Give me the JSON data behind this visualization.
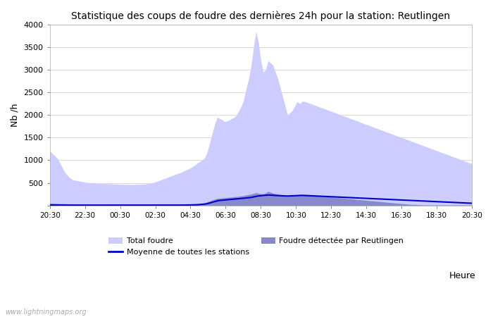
{
  "title": "Statistique des coups de foudre des dernières 24h pour la station: Reutlingen",
  "xlabel": "Heure",
  "ylabel": "Nb /h",
  "xlim_labels": [
    "20:30",
    "22:30",
    "00:30",
    "02:30",
    "04:30",
    "06:30",
    "08:30",
    "10:30",
    "12:30",
    "14:30",
    "16:30",
    "18:30",
    "20:30"
  ],
  "ylim": [
    0,
    4000
  ],
  "yticks": [
    0,
    500,
    1000,
    1500,
    2000,
    2500,
    3000,
    3500,
    4000
  ],
  "color_total": "#ccccff",
  "color_reutlingen": "#8888cc",
  "color_moyenne": "#0000cc",
  "watermark": "www.lightningmaps.org",
  "total_foudre": [
    1200,
    1150,
    1100,
    1050,
    950,
    850,
    750,
    680,
    620,
    580,
    560,
    550,
    540,
    530,
    520,
    510,
    505,
    500,
    495,
    490,
    487,
    485,
    483,
    481,
    480,
    478,
    475,
    472,
    470,
    468,
    465,
    463,
    462,
    461,
    460,
    462,
    464,
    466,
    468,
    470,
    480,
    490,
    500,
    510,
    530,
    550,
    570,
    590,
    610,
    630,
    650,
    670,
    690,
    710,
    730,
    750,
    780,
    800,
    830,
    860,
    900,
    940,
    980,
    1010,
    1060,
    1200,
    1400,
    1600,
    1800,
    1950,
    1920,
    1900,
    1850,
    1870,
    1890,
    1920,
    1950,
    2000,
    2100,
    2200,
    2350,
    2600,
    2800,
    3100,
    3500,
    3850,
    3600,
    3200,
    2950,
    3000,
    3200,
    3150,
    3100,
    2950,
    2800,
    2600,
    2400,
    2200,
    2000,
    2050,
    2100,
    2200,
    2300,
    2250,
    2300,
    2300,
    2280,
    2260,
    2240,
    2220,
    2200,
    2180,
    2160,
    2140,
    2120,
    2100,
    2080,
    2060,
    2040,
    2020,
    2000,
    1980,
    1960,
    1940,
    1920,
    1900,
    1880,
    1860,
    1840,
    1820,
    1800,
    1780,
    1760,
    1740,
    1720,
    1700,
    1680,
    1660,
    1640,
    1620,
    1600,
    1580,
    1560,
    1540,
    1520,
    1500,
    1480,
    1460,
    1440,
    1420,
    1400,
    1380,
    1360,
    1340,
    1320,
    1300,
    1280,
    1260,
    1240,
    1220,
    1200,
    1180,
    1160,
    1140,
    1120,
    1100,
    1080,
    1060,
    1040,
    1020,
    1000,
    980,
    960,
    940,
    920
  ],
  "reutlingen": [
    50,
    48,
    46,
    44,
    42,
    40,
    38,
    36,
    34,
    32,
    30,
    28,
    26,
    24,
    22,
    20,
    18,
    16,
    14,
    12,
    11,
    10,
    10,
    10,
    10,
    10,
    10,
    10,
    10,
    10,
    10,
    10,
    10,
    10,
    10,
    10,
    10,
    10,
    10,
    10,
    10,
    10,
    10,
    10,
    10,
    10,
    10,
    10,
    10,
    10,
    10,
    10,
    10,
    10,
    10,
    12,
    15,
    18,
    22,
    26,
    30,
    35,
    40,
    50,
    60,
    80,
    100,
    120,
    140,
    155,
    160,
    165,
    170,
    175,
    180,
    185,
    190,
    195,
    200,
    210,
    220,
    230,
    240,
    250,
    265,
    280,
    270,
    260,
    255,
    280,
    310,
    290,
    270,
    260,
    250,
    240,
    230,
    220,
    210,
    215,
    220,
    225,
    230,
    235,
    240,
    240,
    235,
    230,
    225,
    220,
    215,
    210,
    205,
    200,
    195,
    190,
    185,
    180,
    175,
    170,
    165,
    160,
    155,
    150,
    145,
    140,
    135,
    130,
    125,
    120,
    115,
    110,
    105,
    100,
    95,
    90,
    85,
    80,
    75,
    70,
    65,
    60,
    55,
    50,
    45,
    40,
    35,
    30,
    25,
    22,
    20,
    18,
    16,
    14,
    12,
    10,
    10,
    10,
    10,
    10,
    10,
    10,
    10,
    10,
    10,
    10,
    10,
    10,
    10,
    10,
    10,
    10,
    10,
    10,
    10
  ],
  "moyenne": [
    8,
    8,
    7,
    7,
    7,
    6,
    6,
    6,
    6,
    6,
    5,
    5,
    5,
    5,
    5,
    5,
    5,
    5,
    5,
    5,
    5,
    5,
    5,
    5,
    5,
    5,
    5,
    5,
    5,
    5,
    5,
    5,
    5,
    5,
    5,
    5,
    5,
    5,
    5,
    5,
    5,
    5,
    5,
    5,
    5,
    5,
    5,
    5,
    5,
    5,
    5,
    5,
    6,
    6,
    6,
    7,
    8,
    9,
    10,
    12,
    14,
    16,
    20,
    25,
    30,
    40,
    55,
    70,
    85,
    100,
    110,
    115,
    120,
    125,
    130,
    135,
    140,
    145,
    150,
    155,
    160,
    165,
    170,
    178,
    188,
    200,
    210,
    215,
    220,
    225,
    230,
    228,
    225,
    220,
    218,
    215,
    212,
    210,
    208,
    210,
    212,
    215,
    218,
    220,
    222,
    220,
    218,
    215,
    212,
    210,
    208,
    205,
    202,
    200,
    198,
    195,
    192,
    190,
    188,
    185,
    182,
    180,
    178,
    175,
    172,
    170,
    168,
    165,
    162,
    160,
    158,
    155,
    152,
    150,
    148,
    145,
    142,
    140,
    138,
    135,
    132,
    130,
    128,
    125,
    122,
    120,
    118,
    115,
    112,
    110,
    108,
    105,
    102,
    100,
    98,
    95,
    92,
    90,
    88,
    85,
    82,
    80,
    78,
    75,
    72,
    70,
    68,
    65,
    62,
    60,
    58,
    55,
    52,
    50,
    48
  ]
}
